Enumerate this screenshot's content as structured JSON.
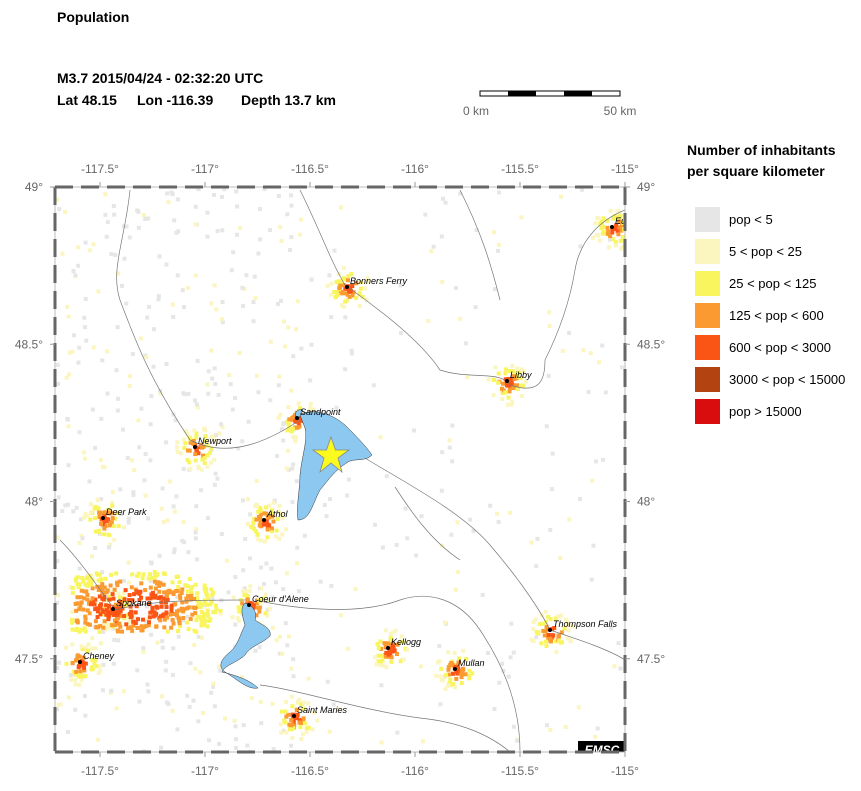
{
  "header": {
    "title": "Population",
    "event": "M3.7  2015/04/24 - 02:32:20 UTC",
    "lat": "Lat 48.15",
    "lon": "Lon -116.39",
    "depth": "Depth  13.7 km"
  },
  "scale_bar": {
    "start": "0 km",
    "end": "50 km"
  },
  "map": {
    "lon_ticks": [
      {
        "value": -117.5,
        "label": "-117.5°"
      },
      {
        "value": -117,
        "label": "-117°"
      },
      {
        "value": -116.5,
        "label": "-116.5°"
      },
      {
        "value": -116,
        "label": "-116°"
      },
      {
        "value": -115.5,
        "label": "-115.5°"
      },
      {
        "value": -115,
        "label": "-115°"
      }
    ],
    "lat_ticks": [
      {
        "value": 49,
        "label": "49°"
      },
      {
        "value": 48.5,
        "label": "48.5°"
      },
      {
        "value": 48,
        "label": "48°"
      },
      {
        "value": 47.5,
        "label": "47.5°"
      }
    ],
    "cities": [
      "Bonners Ferry",
      "Libby",
      "Sandpoint",
      "Newport",
      "Athol",
      "Deer Park",
      "Coeur d'Alene",
      "Spokane",
      "Kellogg",
      "Thompson Falls",
      "Mullan",
      "Cheney",
      "Saint Maries",
      "Eu"
    ],
    "credit": "EMSC"
  },
  "legend": {
    "title_line1": "Number of inhabitants",
    "title_line2": "per square kilometer",
    "items": [
      {
        "label": "pop < 5",
        "color": "#e6e6e6"
      },
      {
        "label": "5 < pop < 25",
        "color": "#fbf5bf"
      },
      {
        "label": "25 < pop < 125",
        "color": "#f8f55f"
      },
      {
        "label": "125 < pop < 600",
        "color": "#fb9a30"
      },
      {
        "label": "600 < pop < 3000",
        "color": "#fb5516"
      },
      {
        "label": "3000 < pop < 15000",
        "color": "#b34412"
      },
      {
        "label": "pop > 15000",
        "color": "#d90d0d"
      }
    ]
  }
}
